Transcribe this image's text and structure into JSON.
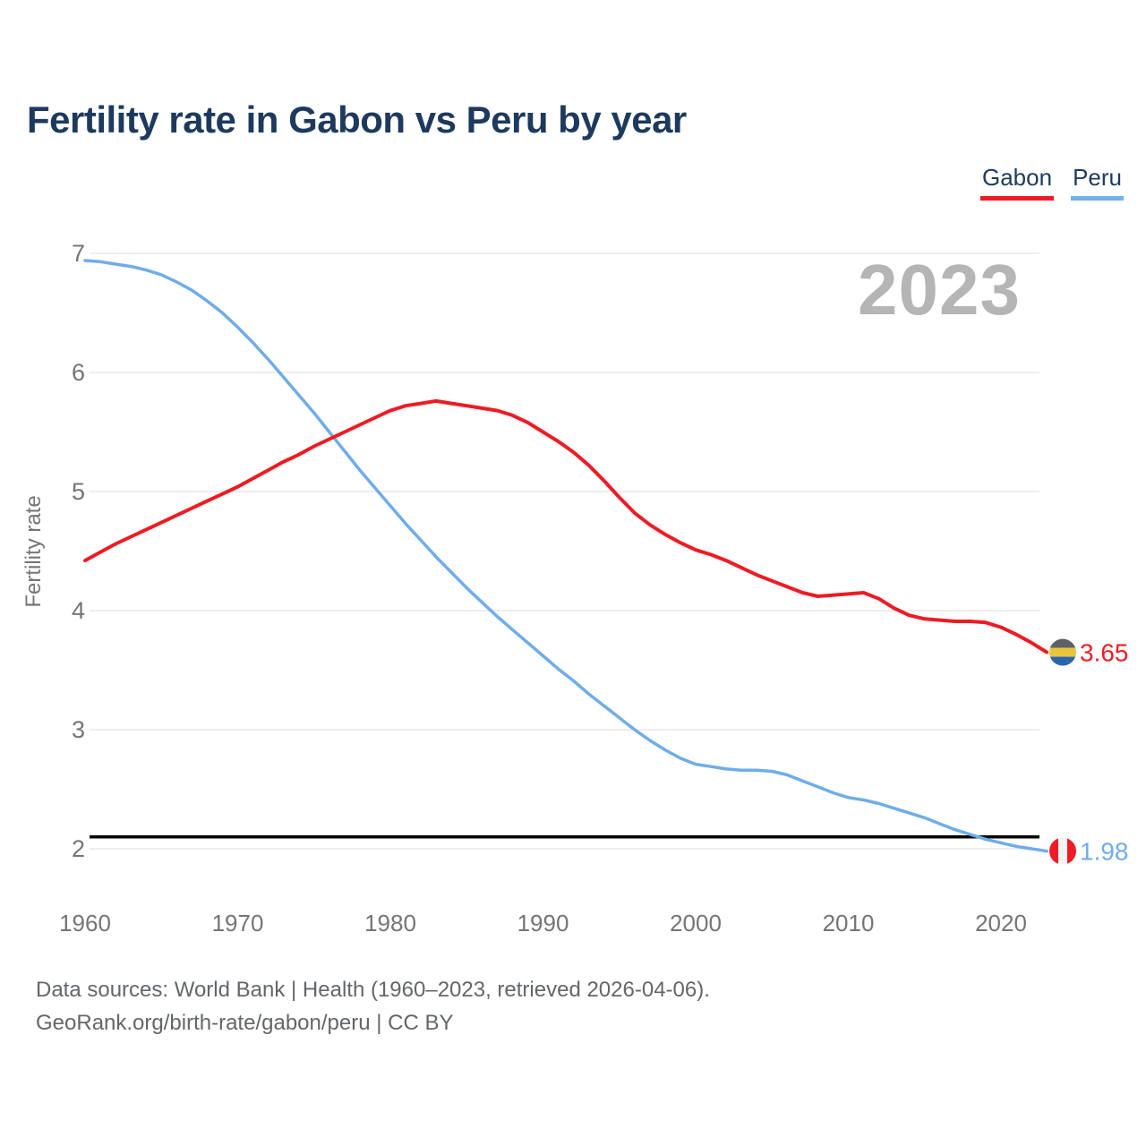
{
  "header": {
    "title": "Fertility rate in Gabon vs Peru by year"
  },
  "legend": {
    "items": [
      {
        "label": "Gabon",
        "color": "#ed1c24"
      },
      {
        "label": "Peru",
        "color": "#74b2e8"
      }
    ]
  },
  "watermark": "2023",
  "footer": {
    "line1": "Data sources: World Bank | Health (1960–2023, retrieved 2026-04-06).",
    "line2": "GeoRank.org/birth-rate/gabon/peru | CC BY"
  },
  "colors": {
    "grid": "#e8e8e8",
    "axis_text": "#757575",
    "reference_line": "#000000",
    "title_text": "#1d3a5e",
    "watermark_text": "#b5b5b5"
  },
  "chart_data": {
    "type": "line",
    "title": "Fertility rate in Gabon vs Peru by year",
    "xlabel": "",
    "ylabel": "Fertility rate",
    "ylim": [
      1.9,
      7.05
    ],
    "xlim": [
      1960,
      2023
    ],
    "yticks": [
      2,
      3,
      4,
      5,
      6,
      7
    ],
    "xticks": [
      1960,
      1970,
      1980,
      1990,
      2000,
      2010,
      2020
    ],
    "grid": true,
    "legend_position": "top-right",
    "reference_line": {
      "value": 2.1,
      "color": "#000000"
    },
    "x": [
      1960,
      1961,
      1962,
      1963,
      1964,
      1965,
      1966,
      1967,
      1968,
      1969,
      1970,
      1971,
      1972,
      1973,
      1974,
      1975,
      1976,
      1977,
      1978,
      1979,
      1980,
      1981,
      1982,
      1983,
      1984,
      1985,
      1986,
      1987,
      1988,
      1989,
      1990,
      1991,
      1992,
      1993,
      1994,
      1995,
      1996,
      1997,
      1998,
      1999,
      2000,
      2001,
      2002,
      2003,
      2004,
      2005,
      2006,
      2007,
      2008,
      2009,
      2010,
      2011,
      2012,
      2013,
      2014,
      2015,
      2016,
      2017,
      2018,
      2019,
      2020,
      2021,
      2022,
      2023
    ],
    "series": [
      {
        "name": "Peru",
        "color": "#6fade8",
        "end_label": "1.98",
        "flag": {
          "icon": "peru-flag-icon",
          "stripes": "vertical",
          "colors": [
            "#ee1c25",
            "#f3f3f3",
            "#ee1c25"
          ]
        },
        "values": [
          6.94,
          6.93,
          6.91,
          6.89,
          6.86,
          6.82,
          6.76,
          6.69,
          6.6,
          6.5,
          6.38,
          6.25,
          6.11,
          5.96,
          5.81,
          5.66,
          5.5,
          5.34,
          5.18,
          5.03,
          4.88,
          4.73,
          4.59,
          4.45,
          4.32,
          4.19,
          4.07,
          3.95,
          3.84,
          3.73,
          3.62,
          3.51,
          3.41,
          3.3,
          3.2,
          3.1,
          3.0,
          2.91,
          2.83,
          2.76,
          2.71,
          2.69,
          2.67,
          2.66,
          2.66,
          2.65,
          2.62,
          2.57,
          2.52,
          2.47,
          2.43,
          2.41,
          2.38,
          2.34,
          2.3,
          2.26,
          2.21,
          2.16,
          2.12,
          2.08,
          2.05,
          2.02,
          2.0,
          1.98
        ]
      },
      {
        "name": "Gabon",
        "color": "#ed1c24",
        "end_label": "3.65",
        "flag": {
          "icon": "gabon-flag-icon",
          "stripes": "horizontal",
          "colors": [
            "#5d6166",
            "#e9c53e",
            "#2b65b0"
          ]
        },
        "values": [
          4.42,
          4.49,
          4.56,
          4.62,
          4.68,
          4.74,
          4.8,
          4.86,
          4.92,
          4.98,
          5.04,
          5.11,
          5.18,
          5.25,
          5.31,
          5.38,
          5.44,
          5.5,
          5.56,
          5.62,
          5.68,
          5.72,
          5.74,
          5.76,
          5.74,
          5.72,
          5.7,
          5.68,
          5.64,
          5.58,
          5.5,
          5.42,
          5.33,
          5.22,
          5.09,
          4.95,
          4.82,
          4.72,
          4.64,
          4.57,
          4.51,
          4.47,
          4.42,
          4.36,
          4.3,
          4.25,
          4.2,
          4.15,
          4.12,
          4.13,
          4.14,
          4.15,
          4.1,
          4.02,
          3.96,
          3.93,
          3.92,
          3.91,
          3.91,
          3.9,
          3.86,
          3.8,
          3.73,
          3.65
        ]
      }
    ]
  }
}
